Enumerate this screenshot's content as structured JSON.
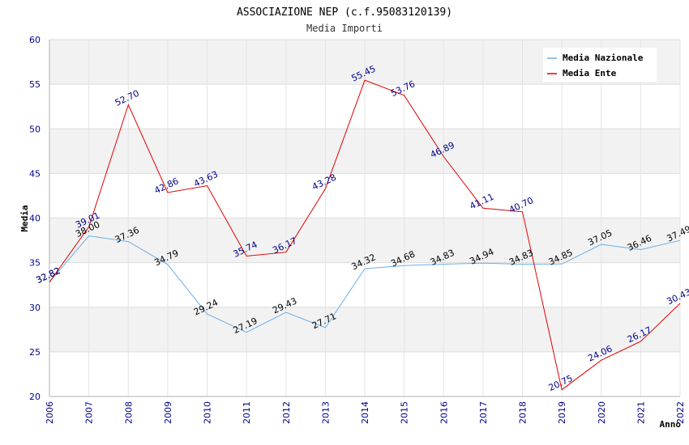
{
  "chart_data": {
    "type": "line",
    "title": "ASSOCIAZIONE NEP (c.f.95083120139)",
    "subtitle": "Media Importi",
    "xlabel": "Anno",
    "ylabel": "Media",
    "ylim": [
      20,
      60
    ],
    "yticks": [
      "20",
      "25",
      "30",
      "35",
      "40",
      "45",
      "50",
      "55",
      "60"
    ],
    "x": [
      "2006",
      "2007",
      "2008",
      "2009",
      "2010",
      "2011",
      "2012",
      "2013",
      "2014",
      "2015",
      "2016",
      "2017",
      "2018",
      "2019",
      "2020",
      "2021",
      "2022"
    ],
    "grid": true,
    "legend_position": "top-right",
    "series": [
      {
        "name": "Media Nazionale",
        "color": "#6aaee8",
        "label_color": "#000000",
        "values": [
          32.82,
          38.0,
          37.36,
          34.79,
          29.24,
          27.19,
          29.43,
          27.71,
          34.32,
          34.68,
          34.83,
          34.94,
          34.83,
          34.85,
          37.05,
          36.46,
          37.49
        ],
        "labels": [
          "32.82",
          "38.00",
          "37.36",
          "34.79",
          "29.24",
          "27.19",
          "29.43",
          "27.71",
          "34.32",
          "34.68",
          "34.83",
          "34.94",
          "34.83",
          "34.85",
          "37.05",
          "36.46",
          "37.49"
        ]
      },
      {
        "name": "Media Ente",
        "color": "#e00000",
        "label_color": "#00008b",
        "values": [
          32.82,
          39.01,
          52.7,
          42.86,
          43.63,
          35.74,
          36.17,
          43.28,
          55.45,
          53.76,
          46.89,
          41.11,
          40.7,
          20.75,
          24.06,
          26.17,
          30.43
        ],
        "labels": [
          "32.82",
          "39.01",
          "52.70",
          "42.86",
          "43.63",
          "35.74",
          "36.17",
          "43.28",
          "55.45",
          "53.76",
          "46.89",
          "41.11",
          "40.70",
          "20.75",
          "24.06",
          "26.17",
          "30.43"
        ]
      }
    ]
  }
}
